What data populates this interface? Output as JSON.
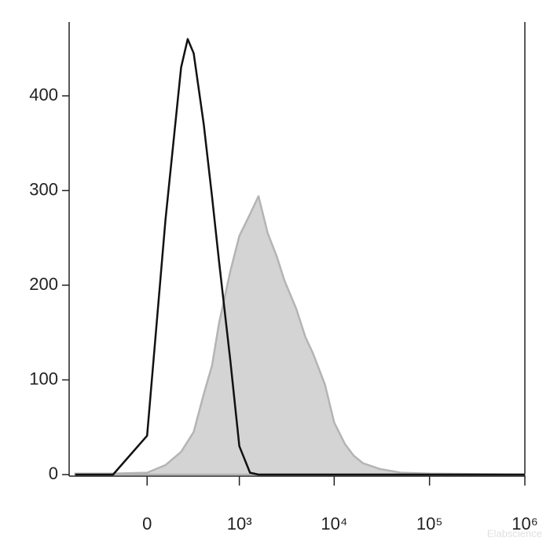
{
  "chart_data": {
    "type": "histogram-overlay",
    "x": [
      -600,
      -400,
      -200,
      0,
      100,
      200,
      250,
      300,
      400,
      500,
      600,
      800,
      1000,
      1300,
      1600,
      2000,
      2500,
      3000,
      4000,
      5000,
      6000,
      8000,
      10000,
      13000,
      16000,
      20000,
      30000,
      50000,
      100000,
      1000000
    ],
    "series": [
      {
        "color": "#b4b4b4",
        "fill": "#d4d4d4",
        "values": [
          1,
          1,
          1,
          2,
          10,
          24,
          35,
          45,
          85,
          115,
          160,
          215,
          252,
          275,
          294,
          255,
          230,
          205,
          175,
          145,
          128,
          95,
          55,
          32,
          20,
          12,
          6,
          2,
          1,
          0
        ]
      },
      {
        "color": "#111111",
        "values": [
          0,
          0,
          0,
          41,
          269,
          430,
          460,
          445,
          370,
          294,
          225,
          120,
          30,
          2,
          0,
          0,
          0,
          0,
          0,
          0,
          0,
          0,
          0,
          0,
          0,
          0,
          0,
          0,
          0,
          0
        ]
      }
    ],
    "xscale": "biexponential",
    "xlim": [
      -700,
      1000000
    ],
    "xticks": [
      0,
      {
        "value": 1000,
        "label": "10³"
      },
      {
        "value": 10000,
        "label": "10⁴"
      },
      {
        "value": 100000,
        "label": "10⁵"
      },
      {
        "value": 1000000,
        "label": "10⁶"
      }
    ],
    "ylim": [
      0,
      478
    ],
    "yticks": [
      0,
      100,
      200,
      300,
      400
    ],
    "watermark": "Elabscience"
  }
}
